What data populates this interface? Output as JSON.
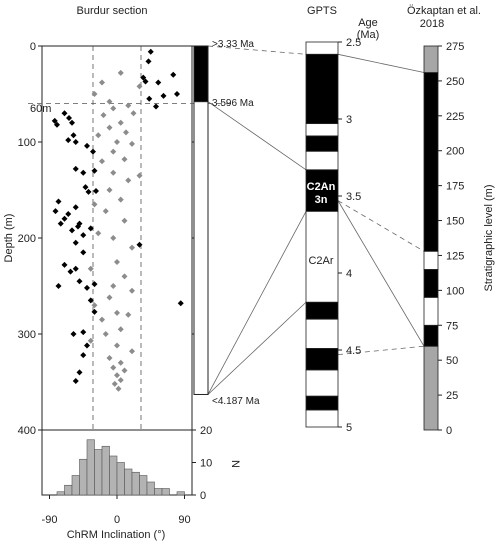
{
  "titles": {
    "burdur": "Burdur section",
    "gpts": "GPTS",
    "ozkaptan_line1": "Özkaptan et al.",
    "ozkaptan_line2": "2018"
  },
  "labels": {
    "depth_axis": "Depth (m)",
    "inclination_axis": "ChRM Inclination (°)",
    "n_axis": "N",
    "age_axis_line1": "Age",
    "age_axis_line2": "(Ma)",
    "strat_axis": "Stratigraphic level (m)",
    "marker_60m": "60m",
    "age_top": ">3.33 Ma",
    "age_mid": "3.596 Ma",
    "age_bottom": "<4.187 Ma",
    "chron_c2an_line1": "C2An",
    "chron_c2an_line2": "3n",
    "chron_c2ar": "C2Ar"
  },
  "colors": {
    "normal_polarity": "#000000",
    "reversed_polarity": "#ffffff",
    "uncertain_polarity": "#a6a6a6",
    "normal_points": "#000000",
    "reversed_points": "#8c8c8c",
    "histogram_fill": "#b3b3b3"
  },
  "chart_data": [
    {
      "type": "scatter",
      "name": "inclination_vs_depth",
      "xlabel": "ChRM Inclination (°)",
      "ylabel": "Depth (m)",
      "xlim": [
        -100,
        100
      ],
      "ylim": [
        400,
        0
      ],
      "xticks": [
        -90,
        0,
        90
      ],
      "yticks": [
        0,
        100,
        200,
        300,
        400
      ],
      "dashed_vlines": [
        -32,
        32
      ],
      "dashed_hline": 60,
      "series": [
        {
          "name": "normal",
          "color": "#000000",
          "points": [
            [
              45,
              6
            ],
            [
              42,
              16
            ],
            [
              75,
              30
            ],
            [
              38,
              37
            ],
            [
              35,
              33
            ],
            [
              55,
              38
            ],
            [
              62,
              52
            ],
            [
              80,
              50
            ],
            [
              43,
              55
            ],
            [
              52,
              63
            ],
            [
              -83,
              78
            ],
            [
              -80,
              82
            ],
            [
              -70,
              70
            ],
            [
              -64,
              75
            ],
            [
              -60,
              80
            ],
            [
              -58,
              93
            ],
            [
              -65,
              98
            ],
            [
              -55,
              100
            ],
            [
              -40,
              104
            ],
            [
              -32,
              110
            ],
            [
              -55,
              128
            ],
            [
              -30,
              130
            ],
            [
              -45,
              132
            ],
            [
              -42,
              147
            ],
            [
              -38,
              152
            ],
            [
              -28,
              151
            ],
            [
              -78,
              162
            ],
            [
              -82,
              172
            ],
            [
              -70,
              180
            ],
            [
              -65,
              175
            ],
            [
              -55,
              168
            ],
            [
              -52,
              188
            ],
            [
              -60,
              192
            ],
            [
              -50,
              185
            ],
            [
              -45,
              197
            ],
            [
              -75,
              185
            ],
            [
              -35,
              190
            ],
            [
              -55,
              205
            ],
            [
              -45,
              215
            ],
            [
              -55,
              232
            ],
            [
              -30,
              248
            ],
            [
              -70,
              228
            ],
            [
              -62,
              235
            ],
            [
              -50,
              245
            ],
            [
              -40,
              252
            ],
            [
              -78,
              250
            ],
            [
              -35,
              265
            ],
            [
              -30,
              277
            ],
            [
              30,
              207
            ],
            [
              85,
              268
            ],
            [
              -58,
              300
            ],
            [
              -45,
              298
            ],
            [
              -45,
              322
            ],
            [
              -40,
              312
            ],
            [
              -50,
              340
            ],
            [
              -55,
              349
            ]
          ]
        },
        {
          "name": "reversed",
          "color": "#8c8c8c",
          "points": [
            [
              5,
              28
            ],
            [
              -20,
              38
            ],
            [
              30,
              42
            ],
            [
              -30,
              50
            ],
            [
              -10,
              58
            ],
            [
              15,
              62
            ],
            [
              -5,
              65
            ],
            [
              22,
              70
            ],
            [
              -18,
              72
            ],
            [
              5,
              80
            ],
            [
              -10,
              85
            ],
            [
              12,
              90
            ],
            [
              -25,
              93
            ],
            [
              0,
              100
            ],
            [
              20,
              102
            ],
            [
              -5,
              110
            ],
            [
              10,
              118
            ],
            [
              -20,
              120
            ],
            [
              -5,
              132
            ],
            [
              30,
              135
            ],
            [
              15,
              140
            ],
            [
              -10,
              150
            ],
            [
              5,
              160
            ],
            [
              -30,
              165
            ],
            [
              -15,
              172
            ],
            [
              10,
              182
            ],
            [
              -25,
              195
            ],
            [
              -5,
              200
            ],
            [
              20,
              210
            ],
            [
              0,
              225
            ],
            [
              -35,
              232
            ],
            [
              10,
              240
            ],
            [
              -5,
              250
            ],
            [
              20,
              255
            ],
            [
              -10,
              262
            ],
            [
              -30,
              270
            ],
            [
              0,
              278
            ],
            [
              15,
              280
            ],
            [
              -20,
              285
            ],
            [
              5,
              295
            ],
            [
              -15,
              300
            ],
            [
              -35,
              307
            ],
            [
              0,
              312
            ],
            [
              20,
              318
            ],
            [
              -10,
              325
            ],
            [
              5,
              330
            ],
            [
              -5,
              335
            ],
            [
              10,
              338
            ],
            [
              0,
              343
            ],
            [
              5,
              348
            ],
            [
              -3,
              352
            ],
            [
              2,
              357
            ]
          ]
        }
      ]
    },
    {
      "type": "bar",
      "name": "inclination_histogram",
      "xlabel": "ChRM Inclination (°)",
      "ylabel": "N",
      "xlim": [
        -100,
        100
      ],
      "ylim": [
        0,
        20
      ],
      "yticks": [
        0,
        10,
        20
      ],
      "bin_width": 10,
      "bin_starts": [
        -80,
        -70,
        -60,
        -50,
        -40,
        -30,
        -20,
        -10,
        0,
        10,
        20,
        30,
        40,
        50,
        60,
        70,
        80
      ],
      "values": [
        1,
        3,
        6,
        11,
        17,
        14,
        15,
        12,
        10,
        8,
        7,
        6,
        4,
        2,
        2,
        0,
        1
      ]
    },
    {
      "type": "column",
      "name": "burdur_magnetostratigraphy",
      "ylim": [
        400,
        0
      ],
      "segments": [
        {
          "from": 0,
          "to": 58,
          "polarity": "normal"
        },
        {
          "from": 58,
          "to": 363,
          "polarity": "reversed"
        }
      ],
      "age_labels": [
        {
          "depth": 0,
          "text": ">3.33 Ma"
        },
        {
          "depth": 58,
          "text": "3.596 Ma"
        },
        {
          "depth": 363,
          "text": "<4.187 Ma"
        }
      ]
    },
    {
      "type": "column",
      "name": "gpts",
      "ylabel": "Age (Ma)",
      "ylim": [
        2.5,
        5
      ],
      "yticks": [
        2.5,
        3,
        3.5,
        4,
        4.5,
        5
      ],
      "segments": [
        {
          "from": 2.5,
          "to": 2.58,
          "polarity": "reversed"
        },
        {
          "from": 2.58,
          "to": 3.03,
          "polarity": "normal"
        },
        {
          "from": 3.03,
          "to": 3.11,
          "polarity": "reversed"
        },
        {
          "from": 3.11,
          "to": 3.21,
          "polarity": "normal"
        },
        {
          "from": 3.21,
          "to": 3.33,
          "polarity": "reversed"
        },
        {
          "from": 3.33,
          "to": 3.6,
          "polarity": "normal"
        },
        {
          "from": 3.6,
          "to": 4.19,
          "polarity": "reversed"
        },
        {
          "from": 4.19,
          "to": 4.3,
          "polarity": "normal"
        },
        {
          "from": 4.3,
          "to": 4.49,
          "polarity": "reversed"
        },
        {
          "from": 4.49,
          "to": 4.63,
          "polarity": "normal"
        },
        {
          "from": 4.63,
          "to": 4.8,
          "polarity": "reversed"
        },
        {
          "from": 4.8,
          "to": 4.89,
          "polarity": "normal"
        },
        {
          "from": 4.89,
          "to": 5.0,
          "polarity": "reversed"
        }
      ]
    },
    {
      "type": "column",
      "name": "ozkaptan_2018",
      "ylabel": "Stratigraphic level (m)",
      "ylim": [
        0,
        275
      ],
      "yticks": [
        0,
        25,
        50,
        75,
        100,
        125,
        150,
        175,
        200,
        225,
        250,
        275
      ],
      "segments": [
        {
          "from": 0,
          "to": 60,
          "polarity": "uncertain"
        },
        {
          "from": 60,
          "to": 75,
          "polarity": "normal"
        },
        {
          "from": 75,
          "to": 95,
          "polarity": "reversed"
        },
        {
          "from": 95,
          "to": 115,
          "polarity": "normal"
        },
        {
          "from": 115,
          "to": 128,
          "polarity": "reversed"
        },
        {
          "from": 128,
          "to": 256,
          "polarity": "normal"
        },
        {
          "from": 256,
          "to": 275,
          "polarity": "uncertain"
        }
      ]
    }
  ],
  "correlations": [
    {
      "from": "burdur",
      "depth": 0,
      "to": "gpts",
      "age": 2.58,
      "style": "dashed"
    },
    {
      "from": "burdur",
      "depth": 58,
      "to": "gpts",
      "age": 3.33,
      "style": "solid"
    },
    {
      "from": "burdur",
      "depth": 363,
      "to": "gpts",
      "age": 3.6,
      "style": "solid"
    },
    {
      "from": "burdur",
      "depth": 363,
      "to": "gpts",
      "age": 4.19,
      "style": "solid"
    },
    {
      "from": "gpts",
      "age": 2.58,
      "to": "ozkaptan",
      "level": 256,
      "style": "solid"
    },
    {
      "from": "gpts",
      "age": 3.53,
      "to": "ozkaptan",
      "level": 128,
      "style": "dashed"
    },
    {
      "from": "gpts",
      "age": 3.53,
      "to": "ozkaptan",
      "level": 60,
      "style": "solid"
    },
    {
      "from": "gpts",
      "age": 4.53,
      "to": "ozkaptan",
      "level": 60,
      "style": "dashed"
    }
  ]
}
